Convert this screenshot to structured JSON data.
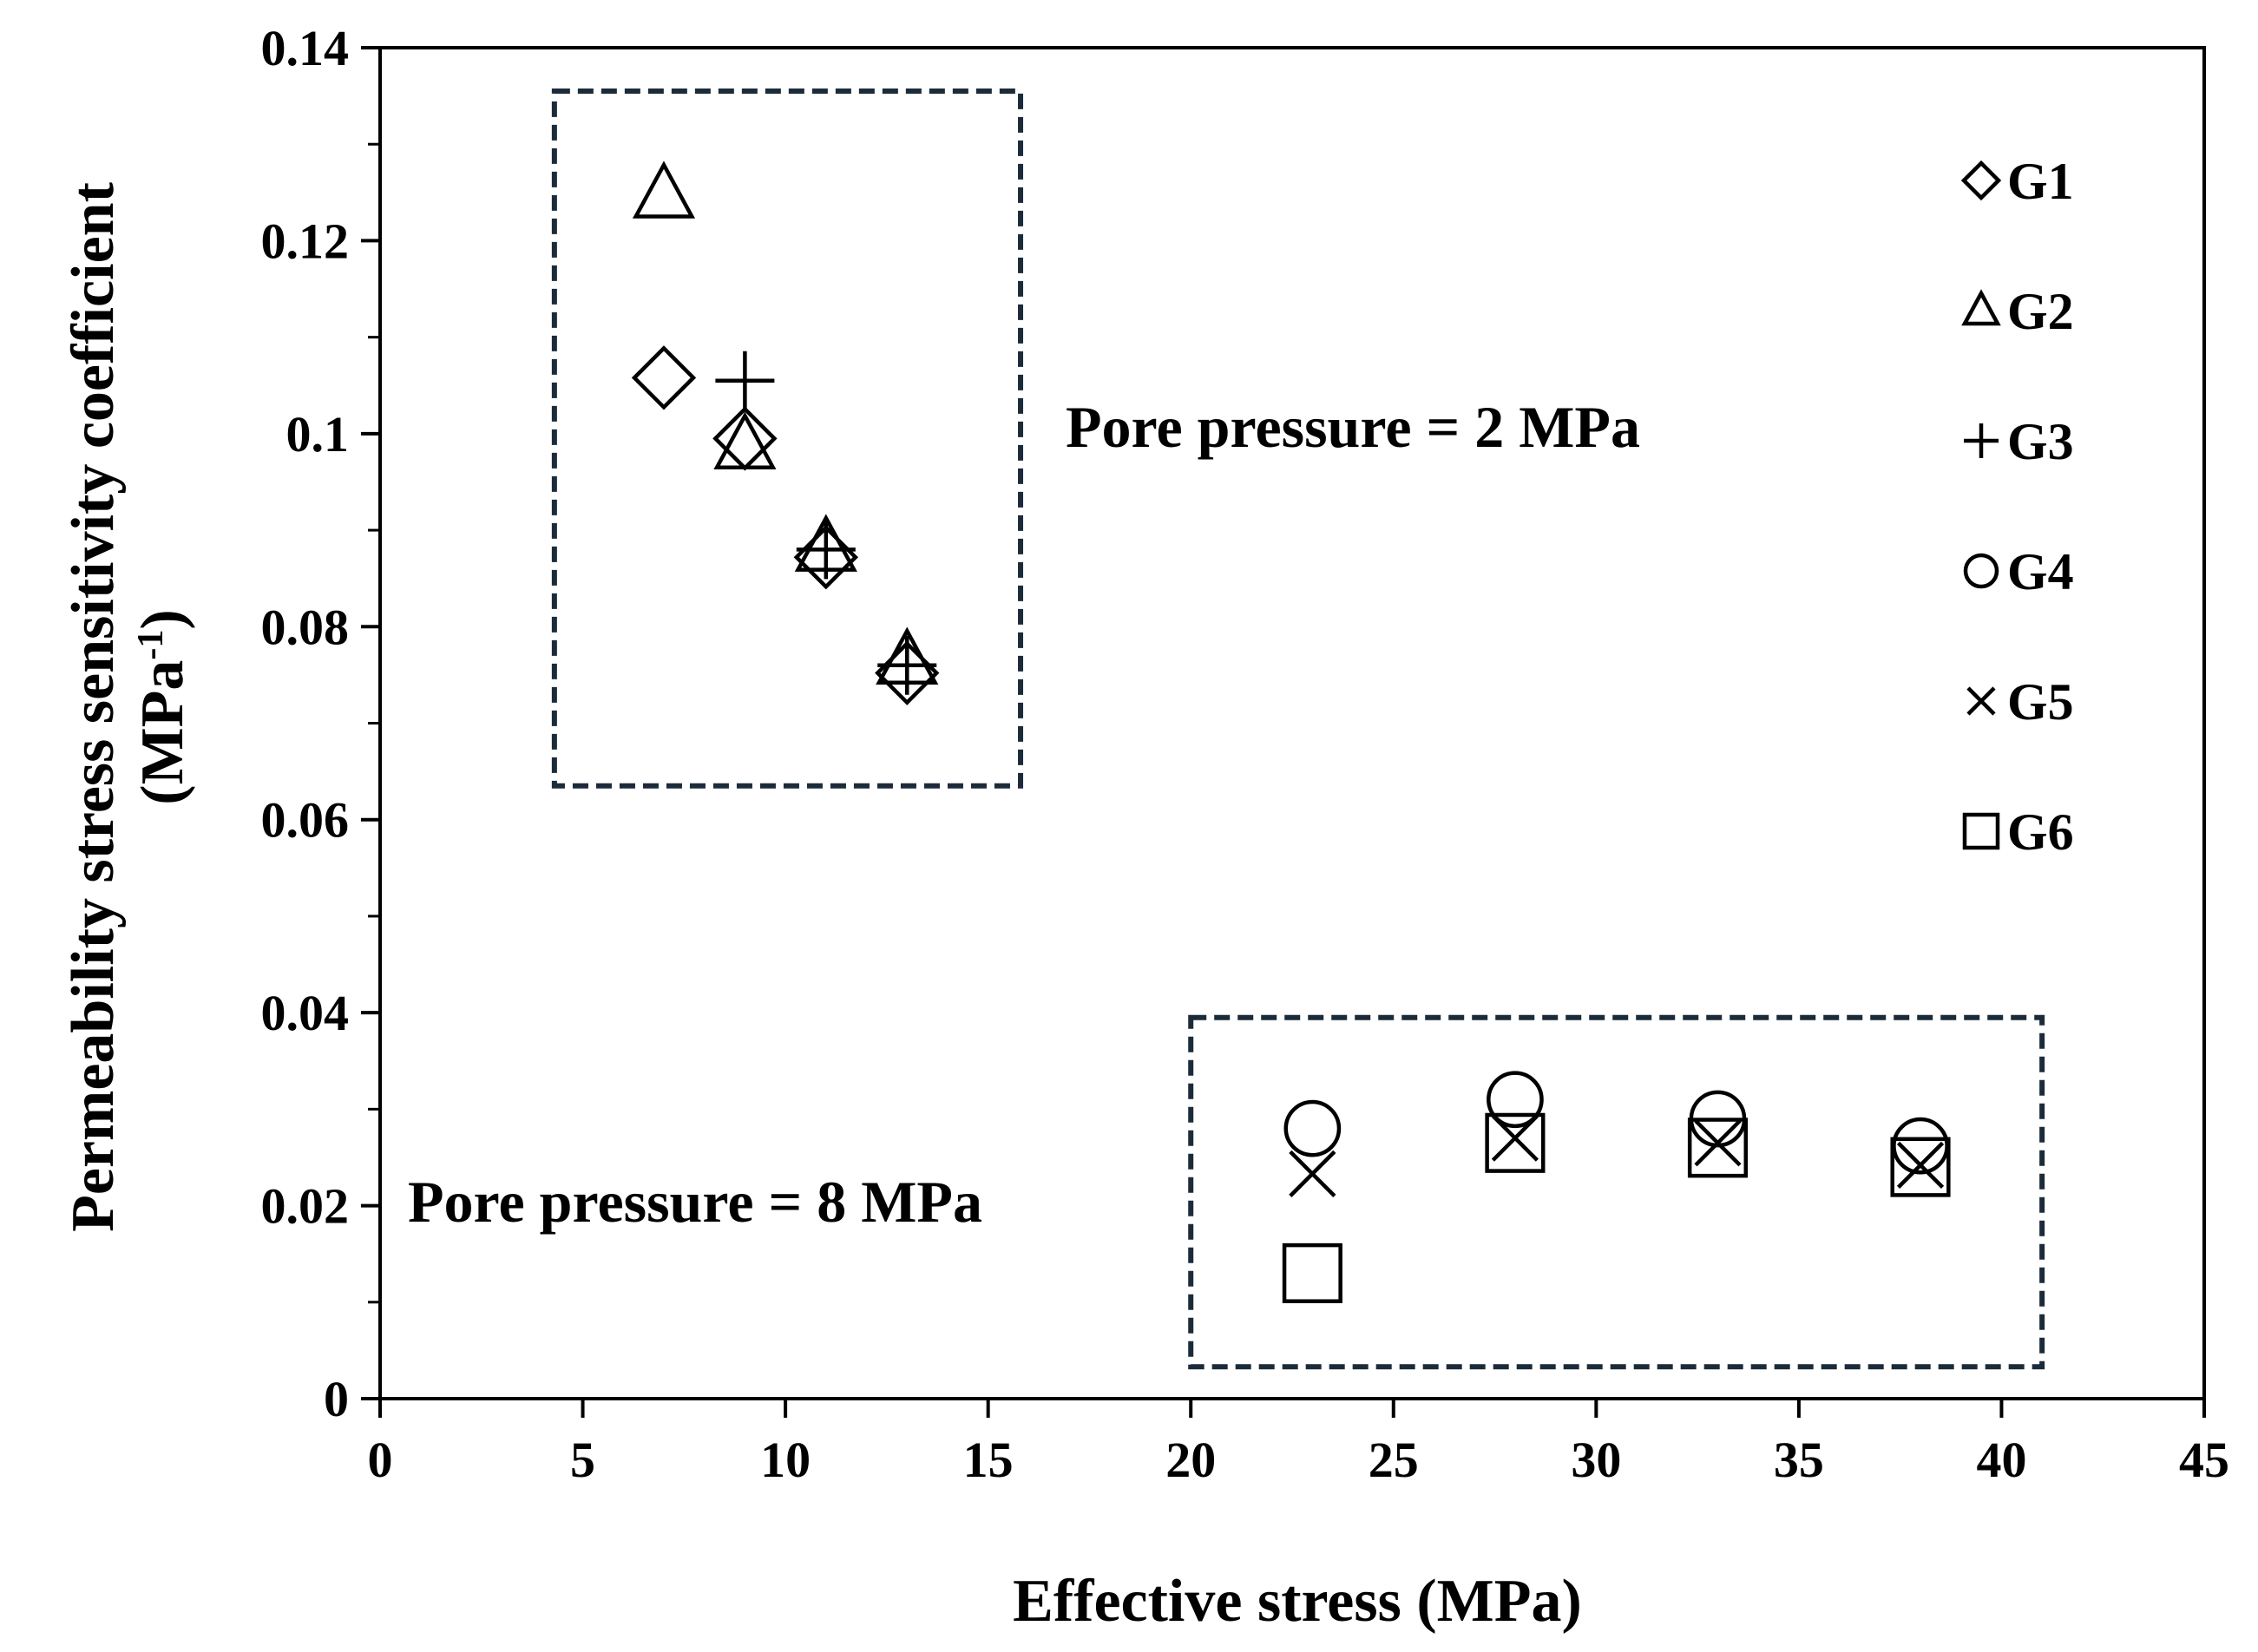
{
  "chart_data": {
    "type": "scatter",
    "title": "",
    "xlabel": "Effective stress (MPa)",
    "ylabel_line1": "Permeability stress sensitivity coefficient",
    "ylabel_line2_prefix": "(MPa",
    "ylabel_line2_sup": "-1",
    "ylabel_line2_suffix": ")",
    "xlim": [
      0,
      45
    ],
    "ylim": [
      0,
      0.14
    ],
    "xticks": [
      0,
      5,
      10,
      15,
      20,
      25,
      30,
      35,
      40,
      45
    ],
    "xtick_labels": [
      "0",
      "5",
      "10",
      "15",
      "20",
      "25",
      "30",
      "35",
      "40",
      "45"
    ],
    "yticks": [
      0,
      0.02,
      0.04,
      0.06,
      0.08,
      0.1,
      0.12,
      0.14
    ],
    "ytick_labels": [
      "0",
      "0.02",
      "0.04",
      "0.06",
      "0.08",
      "0.1",
      "0.12",
      "0.14"
    ],
    "y_minor_step": 0.01,
    "grid": false,
    "legend_position": "right",
    "series": [
      {
        "name": "G1",
        "marker": "diamond",
        "x": [
          7,
          9,
          11,
          13
        ],
        "y": [
          0.1058,
          0.0995,
          0.0872,
          0.0752
        ]
      },
      {
        "name": "G2",
        "marker": "triangle",
        "x": [
          7,
          9,
          11,
          13
        ],
        "y": [
          0.1248,
          0.0988,
          0.0882,
          0.0765
        ]
      },
      {
        "name": "G3",
        "marker": "plus",
        "x": [
          9,
          11,
          13
        ],
        "y": [
          0.1055,
          0.088,
          0.076
        ]
      },
      {
        "name": "G4",
        "marker": "circle",
        "x": [
          23,
          28,
          33,
          38
        ],
        "y": [
          0.028,
          0.031,
          0.029,
          0.0262
        ]
      },
      {
        "name": "G5",
        "marker": "cross",
        "x": [
          23,
          28,
          33,
          38
        ],
        "y": [
          0.0233,
          0.027,
          0.0265,
          0.0242
        ]
      },
      {
        "name": "G6",
        "marker": "square",
        "x": [
          23,
          28,
          33,
          38
        ],
        "y": [
          0.013,
          0.0265,
          0.026,
          0.024
        ]
      }
    ],
    "annotations": [
      {
        "text": "Pore pressure = 2 MPa",
        "box_x": [
          4.3,
          15.8
        ],
        "box_y": [
          0.0635,
          0.1355
        ]
      },
      {
        "text": "Pore pressure = 8 MPa",
        "box_x": [
          20.0,
          41.0
        ],
        "box_y": [
          0.0033,
          0.0395
        ]
      }
    ],
    "colors": {
      "marker": "#000000",
      "axis": "#000000",
      "box": "#1c2b3a"
    }
  }
}
